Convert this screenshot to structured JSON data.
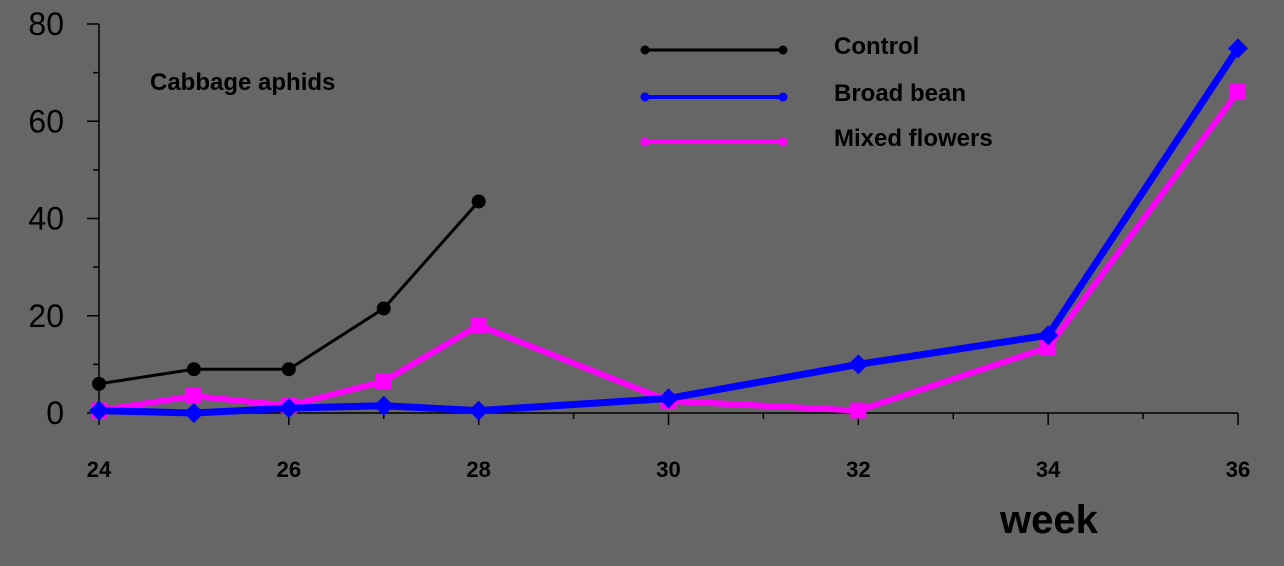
{
  "chart_data": {
    "type": "line",
    "xlabel": "week",
    "ylabel": "",
    "annotation": "Cabbage aphids",
    "xlim": [
      24,
      36
    ],
    "ylim": [
      0,
      80
    ],
    "x_ticks": [
      24,
      26,
      28,
      30,
      32,
      34,
      36
    ],
    "y_ticks": [
      0,
      20,
      40,
      60,
      80
    ],
    "grid": false,
    "legend_position": "top-right",
    "series": [
      {
        "name": "Control",
        "color": "#000000",
        "marker": "circle",
        "points": [
          [
            24,
            6
          ],
          [
            25,
            9
          ],
          [
            26,
            9
          ],
          [
            27,
            21.5
          ],
          [
            28,
            43.5
          ]
        ]
      },
      {
        "name": "Broad bean",
        "color": "#0000ff",
        "marker": "diamond",
        "points": [
          [
            24,
            0.5
          ],
          [
            25,
            0
          ],
          [
            26,
            1
          ],
          [
            27,
            1.5
          ],
          [
            28,
            0.5
          ],
          [
            30,
            3
          ],
          [
            32,
            10
          ],
          [
            34,
            16
          ],
          [
            36,
            75
          ]
        ]
      },
      {
        "name": "Mixed flowers",
        "color": "#ff00ff",
        "marker": "square",
        "points": [
          [
            24,
            0.5
          ],
          [
            25,
            3.5
          ],
          [
            26,
            1.5
          ],
          [
            27,
            6.5
          ],
          [
            28,
            18
          ],
          [
            30,
            2.5
          ],
          [
            32,
            0.5
          ],
          [
            34,
            13.5
          ],
          [
            36,
            66
          ]
        ]
      }
    ]
  }
}
